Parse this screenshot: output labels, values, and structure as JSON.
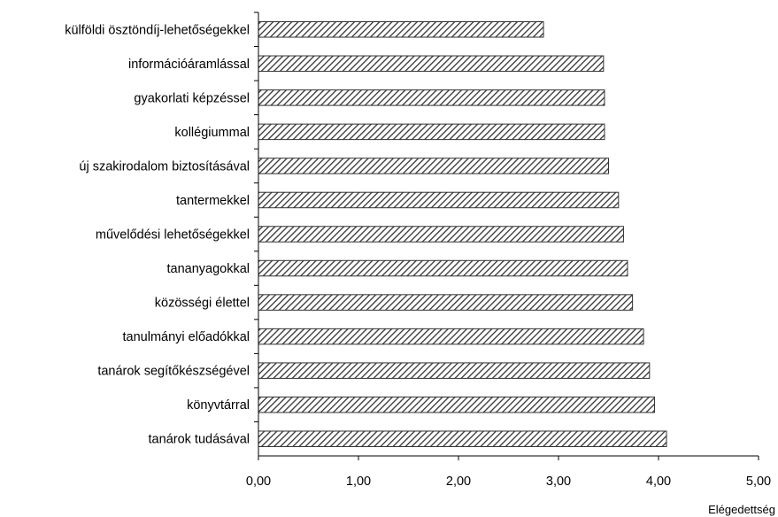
{
  "chart_data": {
    "type": "bar",
    "orientation": "horizontal",
    "categories": [
      "külföldi ösztöndíj-lehetőségekkel",
      "információáramlással",
      "gyakorlati képzéssel",
      "kollégiummal",
      "új szakirodalom biztosításával",
      "tantermekkel",
      "művelődési lehetőségekkel",
      "tananyagokkal",
      "közösségi élettel",
      "tanulmányi előadókkal",
      "tanárok segítőkészségével",
      "könyvtárral",
      "tanárok tudásával"
    ],
    "values": [
      2.85,
      3.45,
      3.46,
      3.46,
      3.5,
      3.6,
      3.65,
      3.69,
      3.74,
      3.85,
      3.91,
      3.96,
      4.08
    ],
    "xlabel": "Elégedettség",
    "xlim": [
      0,
      5
    ],
    "xticks": [
      "0,00",
      "1,00",
      "2,00",
      "3,00",
      "4,00",
      "5,00"
    ],
    "bar_pattern": "diagonal-hatch",
    "bar_color": "#333333",
    "grid": false,
    "legend": "none"
  }
}
